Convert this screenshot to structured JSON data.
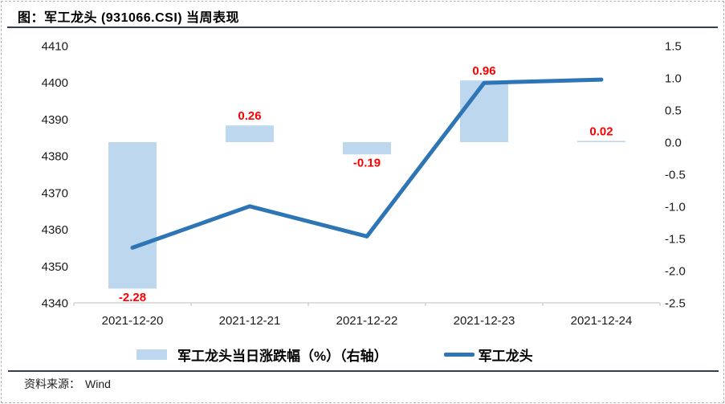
{
  "figure": {
    "title": "图：军工龙头 (931066.CSI) 当周表现",
    "source_label": "资料来源：",
    "source_value": "Wind"
  },
  "colors": {
    "bar_fill": "#BDD7EE",
    "line_stroke": "#2E75B6",
    "value_label": "#FF0000",
    "axis_line": "#C9C9C9",
    "rule_dark": "#333F50"
  },
  "legend": [
    {
      "label": "军工龙头当日涨跌幅（%）（右轴）",
      "type": "bar",
      "color": "#BDD7EE"
    },
    {
      "label": "军工龙头",
      "type": "line",
      "color": "#2E75B6"
    }
  ],
  "chart_data": {
    "type": "combo",
    "categories": [
      "2021-12-20",
      "2021-12-21",
      "2021-12-22",
      "2021-12-23",
      "2021-12-24"
    ],
    "series": [
      {
        "name": "军工龙头当日涨跌幅（%）（右轴）",
        "type": "bar",
        "axis": "right",
        "values": [
          -2.28,
          0.26,
          -0.19,
          0.96,
          0.02
        ],
        "labels": [
          "-2.28",
          "0.26",
          "-0.19",
          "0.96",
          "0.02"
        ],
        "color": "#BDD7EE",
        "label_color": "#FF0000"
      },
      {
        "name": "军工龙头",
        "type": "line",
        "axis": "left",
        "values": [
          4355.0,
          4366.3,
          4358.1,
          4399.9,
          4400.8
        ],
        "color": "#2E75B6"
      }
    ],
    "left_axis": {
      "min": 4340,
      "max": 4410,
      "step": 10,
      "ticks": [
        "4410",
        "4400",
        "4390",
        "4380",
        "4370",
        "4360",
        "4350",
        "4340"
      ]
    },
    "right_axis": {
      "min": -2.5,
      "max": 1.5,
      "step": 0.5,
      "ticks": [
        "1.5",
        "1.0",
        "0.5",
        "0.0",
        "-0.5",
        "-1.0",
        "-1.5",
        "-2.0",
        "-2.5"
      ]
    },
    "grid": false,
    "legend_position": "bottom"
  }
}
